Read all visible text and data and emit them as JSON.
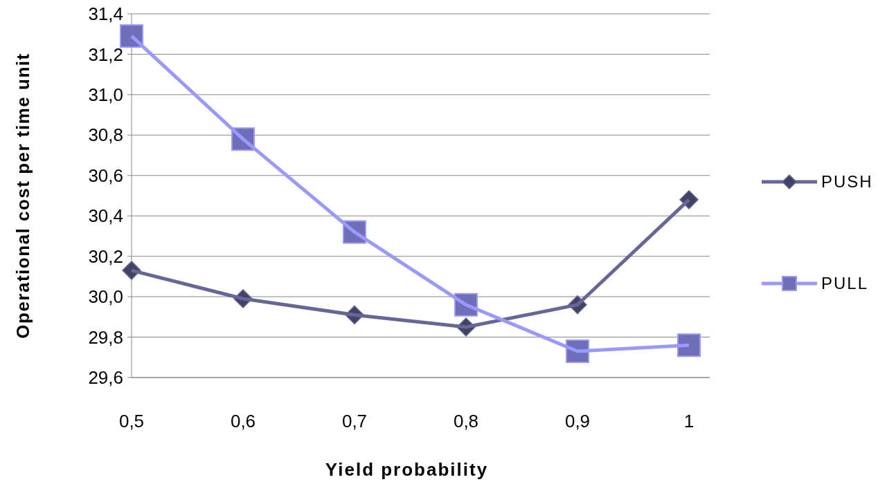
{
  "chart_data": {
    "type": "line",
    "xlabel": "Yield probability",
    "ylabel": "Operational cost per time unit",
    "categories": [
      "0,5",
      "0,6",
      "0,7",
      "0,8",
      "0,9",
      "1"
    ],
    "series": [
      {
        "name": "PUSH",
        "color": "#666699",
        "marker": "diamond",
        "values": [
          30.13,
          29.99,
          29.91,
          29.85,
          29.96,
          30.48
        ]
      },
      {
        "name": "PULL",
        "color": "#9999ff",
        "marker": "square",
        "values": [
          31.29,
          30.78,
          30.32,
          29.96,
          29.73,
          29.76
        ]
      }
    ],
    "ylim": [
      29.6,
      31.4
    ],
    "yticks": [
      {
        "value": 29.6,
        "label": "29,6"
      },
      {
        "value": 29.8,
        "label": "29,8"
      },
      {
        "value": 30.0,
        "label": "30,0"
      },
      {
        "value": 30.2,
        "label": "30,2"
      },
      {
        "value": 30.4,
        "label": "30,4"
      },
      {
        "value": 30.6,
        "label": "30,6"
      },
      {
        "value": 30.8,
        "label": "30,8"
      },
      {
        "value": 31.0,
        "label": "31,0"
      },
      {
        "value": 31.2,
        "label": "31,2"
      },
      {
        "value": 31.4,
        "label": "31,4"
      }
    ],
    "grid": "y",
    "legend": "right"
  }
}
